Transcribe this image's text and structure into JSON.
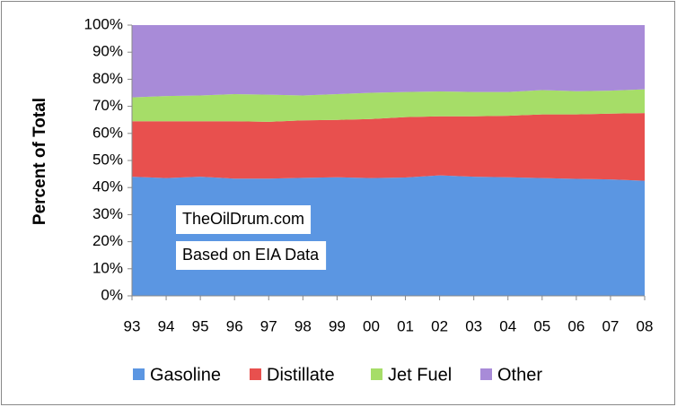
{
  "chart_data": {
    "type": "stacked-area",
    "y_label": "Percent of Total",
    "annotations": [
      "TheOilDrum.com",
      "Based on EIA Data"
    ],
    "categories": [
      "93",
      "94",
      "95",
      "96",
      "97",
      "98",
      "99",
      "00",
      "01",
      "02",
      "03",
      "04",
      "05",
      "06",
      "07",
      "08"
    ],
    "series": [
      {
        "name": "Gasoline",
        "color": "#5b96e2",
        "values": [
          44,
          43.5,
          44,
          43.3,
          43.3,
          43.6,
          43.8,
          43.5,
          43.7,
          44.5,
          44,
          43.8,
          43.5,
          43.2,
          43,
          42.5
        ]
      },
      {
        "name": "Distillate",
        "color": "#e8504e",
        "values": [
          20.5,
          21,
          20.5,
          21.2,
          21,
          21.2,
          21.2,
          21.8,
          22.3,
          21.8,
          22.3,
          22.7,
          23.5,
          23.8,
          24.3,
          25
        ]
      },
      {
        "name": "Jet Fuel",
        "color": "#a6dd68",
        "values": [
          8.8,
          9.3,
          9.5,
          10,
          10,
          9.2,
          9.5,
          9.7,
          9.3,
          9.2,
          9,
          8.8,
          9,
          8.6,
          8.5,
          8.8
        ]
      },
      {
        "name": "Other",
        "color": "#a88bd8",
        "values": [
          26.7,
          26.2,
          26,
          25.5,
          25.7,
          26,
          25.5,
          25,
          24.7,
          24.5,
          24.7,
          24.7,
          24,
          24.4,
          24.2,
          23.7
        ]
      }
    ],
    "ylim": [
      0,
      100
    ],
    "yticks": [
      {
        "value": 0,
        "label": "0%"
      },
      {
        "value": 10,
        "label": "10%"
      },
      {
        "value": 20,
        "label": "20%"
      },
      {
        "value": 30,
        "label": "30%"
      },
      {
        "value": 40,
        "label": "40%"
      },
      {
        "value": 50,
        "label": "50%"
      },
      {
        "value": 60,
        "label": "60%"
      },
      {
        "value": 70,
        "label": "70%"
      },
      {
        "value": 80,
        "label": "80%"
      },
      {
        "value": 90,
        "label": "90%"
      },
      {
        "value": 100,
        "label": "100%"
      }
    ],
    "legend": "bottom"
  }
}
